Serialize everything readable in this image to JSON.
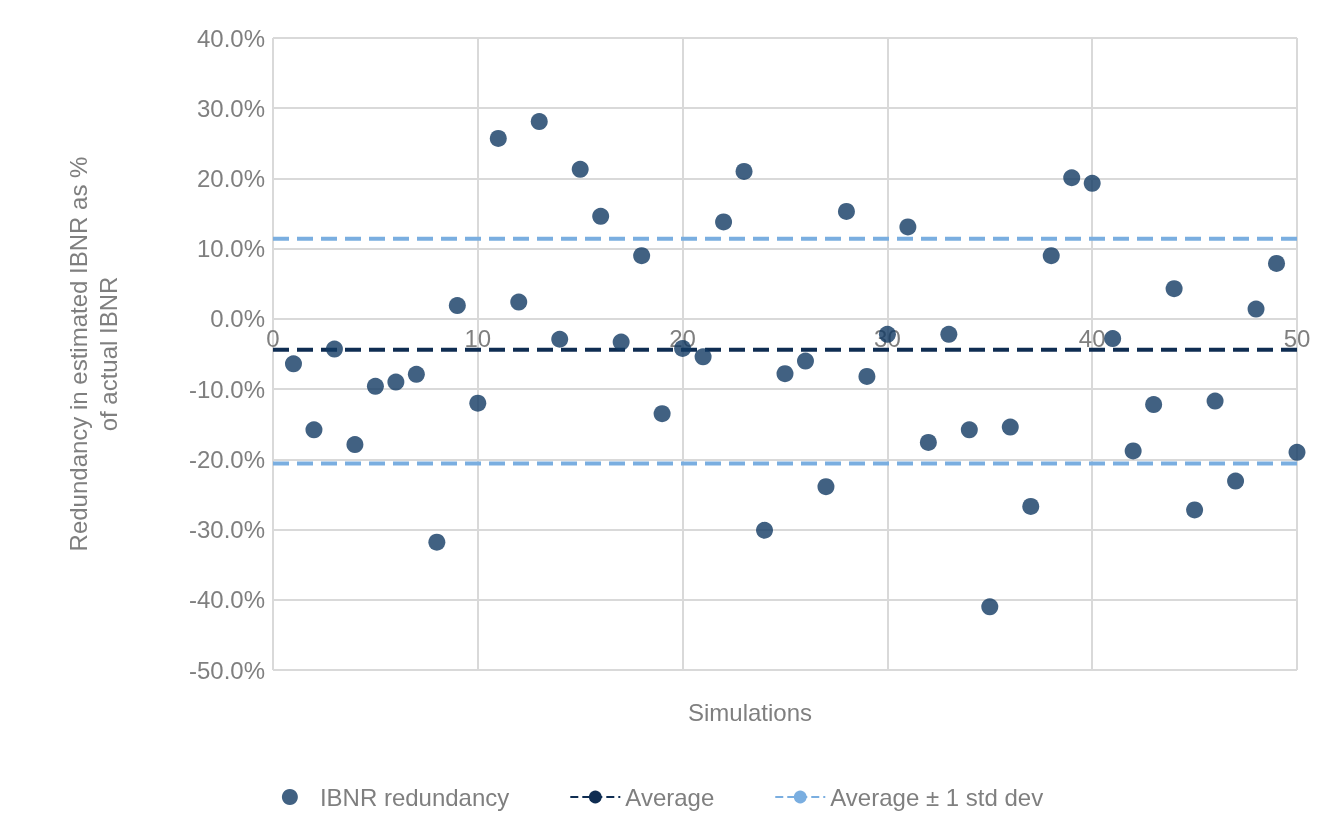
{
  "chart_data": {
    "type": "scatter",
    "xlabel": "Simulations",
    "ylabel": "Redundancy in estimated IBNR as %\nof actual IBNR",
    "xlim": [
      0,
      50
    ],
    "xticks": [
      0,
      10,
      20,
      30,
      40,
      50
    ],
    "ylim": [
      -50,
      40
    ],
    "yticks": [
      {
        "value": -50,
        "label": "-50.0%"
      },
      {
        "value": -40,
        "label": "-40.0%"
      },
      {
        "value": -30,
        "label": "-30.0%"
      },
      {
        "value": -20,
        "label": "-20.0%"
      },
      {
        "value": -10,
        "label": "-10.0%"
      },
      {
        "value": 0,
        "label": "0.0%"
      },
      {
        "value": 10,
        "label": "10.0%"
      },
      {
        "value": 20,
        "label": "20.0%"
      },
      {
        "value": 30,
        "label": "30.0%"
      },
      {
        "value": 40,
        "label": "40.0%"
      }
    ],
    "grid": true,
    "legend": "bottom",
    "marker": "circle",
    "series": [
      {
        "name": "IBNR redundancy",
        "color": "#123a63",
        "x": [
          1,
          2,
          3,
          4,
          5,
          6,
          7,
          8,
          9,
          10,
          11,
          12,
          13,
          14,
          15,
          16,
          17,
          18,
          19,
          20,
          21,
          22,
          23,
          24,
          25,
          26,
          27,
          28,
          29,
          30,
          31,
          32,
          33,
          34,
          35,
          36,
          37,
          38,
          39,
          40,
          41,
          42,
          43,
          44,
          45,
          46,
          47,
          48,
          49,
          50
        ],
        "values": [
          -6.4,
          -15.8,
          -4.3,
          -17.9,
          -9.6,
          -9.0,
          -7.9,
          -31.8,
          1.9,
          -12.0,
          25.7,
          2.4,
          28.1,
          -2.9,
          21.3,
          14.6,
          -3.3,
          9.0,
          -13.5,
          -4.2,
          -5.4,
          13.8,
          21.0,
          -30.1,
          -7.8,
          -6.0,
          -23.9,
          15.3,
          -8.2,
          -2.2,
          13.1,
          -17.6,
          -2.2,
          -15.8,
          -41.0,
          -15.4,
          -26.7,
          9.0,
          20.1,
          19.3,
          -2.8,
          -18.8,
          -12.2,
          4.3,
          -27.2,
          -11.7,
          -23.1,
          1.4,
          7.9,
          -19.0
        ]
      },
      {
        "name": "Average",
        "type": "line",
        "line_style": "dashed",
        "marker": "none",
        "color": "#0f2d52",
        "x": [
          0,
          50
        ],
        "values": [
          -4.4,
          -4.4
        ]
      },
      {
        "name": "Average ± 1 std dev",
        "type": "line",
        "line_style": "dashed",
        "marker": "none",
        "color": "#7aaee0",
        "x": [
          0,
          50
        ],
        "values": [
          11.4,
          11.4
        ]
      },
      {
        "type": "line",
        "line_style": "dashed",
        "marker": "none",
        "color": "#7aaee0",
        "x": [
          0,
          50
        ],
        "values": [
          -20.6,
          -20.6
        ]
      }
    ]
  }
}
